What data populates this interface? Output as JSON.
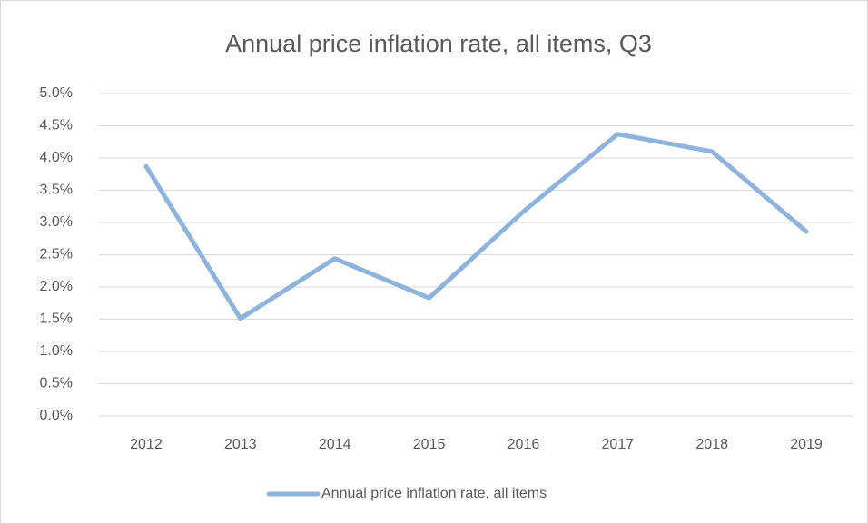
{
  "chart_data": {
    "type": "line",
    "title": "Annual price inflation rate, all items, Q3",
    "categories": [
      "2012",
      "2013",
      "2014",
      "2015",
      "2016",
      "2017",
      "2018",
      "2019"
    ],
    "series": [
      {
        "name": "Annual price inflation rate, all items",
        "color": "#8eb4de",
        "values": [
          3.87,
          1.51,
          2.44,
          1.83,
          3.17,
          4.37,
          4.1,
          2.86
        ]
      }
    ],
    "ylim": [
      0,
      5
    ],
    "yticks": [
      {
        "value": 0,
        "label": "0.0%"
      },
      {
        "value": 0.5,
        "label": "0.5%"
      },
      {
        "value": 1,
        "label": "1.0%"
      },
      {
        "value": 1.5,
        "label": "1.5%"
      },
      {
        "value": 2,
        "label": "2.0%"
      },
      {
        "value": 2.5,
        "label": "2.5%"
      },
      {
        "value": 3,
        "label": "3.0%"
      },
      {
        "value": 3.5,
        "label": "3.5%"
      },
      {
        "value": 4,
        "label": "4.0%"
      },
      {
        "value": 4.5,
        "label": "4.5%"
      },
      {
        "value": 5,
        "label": "5.0%"
      }
    ],
    "grid": true,
    "legend": "bottom"
  }
}
